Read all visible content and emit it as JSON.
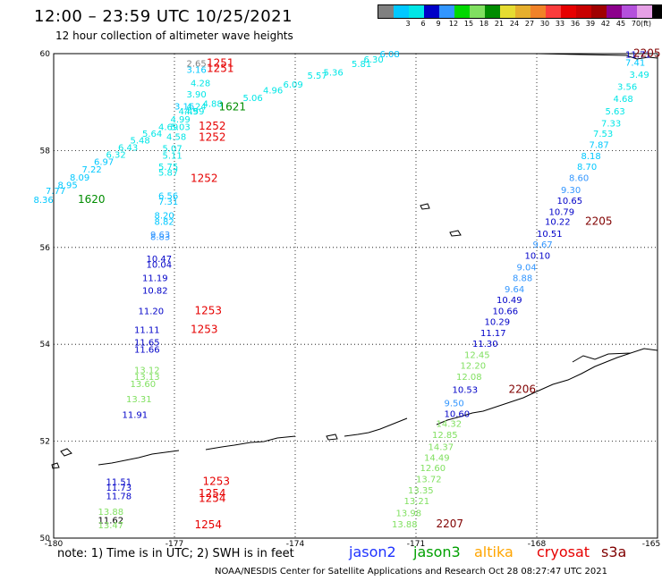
{
  "title": "12:00 – 23:59 UTC 10/25/2021",
  "subtitle": "12 hour collection of altimeter wave heights",
  "colorbar": {
    "colors": [
      "#808080",
      "#00c8ff",
      "#00e6e6",
      "#0000c8",
      "#3296ff",
      "#00d800",
      "#80e060",
      "#008c00",
      "#e6dc32",
      "#e6af2d",
      "#f08228",
      "#fa3c3c",
      "#e60000",
      "#c80000",
      "#a00000",
      "#8c008c",
      "#b450dc",
      "#e6a0e6",
      "#000000"
    ],
    "ticks": [
      "3",
      "6",
      "9",
      "12",
      "15",
      "18",
      "21",
      "24",
      "27",
      "30",
      "33",
      "36",
      "39",
      "42",
      "45",
      "70"
    ],
    "unit": "(ft)"
  },
  "axes": {
    "lon_labels": [
      "-180",
      "-177",
      "-174",
      "-171",
      "-168",
      "-165"
    ],
    "lat_labels": [
      "60",
      "58",
      "56",
      "54",
      "52",
      "50"
    ]
  },
  "note": "note:  1) Time is in UTC; 2) SWH is in feet",
  "satellites": [
    {
      "name": "jason2",
      "color": "#1e32ff"
    },
    {
      "name": "jason3",
      "color": "#00a000"
    },
    {
      "name": "altika",
      "color": "#ffa500"
    },
    {
      "name": "cryosat",
      "color": "#e60000"
    },
    {
      "name": "s3a",
      "color": "#800000"
    }
  ],
  "credit": "NOAA/NESDIS Center for Satellite Applications and Research    Oct 28 08:27:47 UTC 2021",
  "track_labels": [
    {
      "text": "1251",
      "lon": -176.2,
      "lat": 59.73,
      "color": "#e60000"
    },
    {
      "text": "1251",
      "lon": -176.2,
      "lat": 59.62,
      "color": "#e60000"
    },
    {
      "text": "1621",
      "lon": -175.9,
      "lat": 58.83,
      "color": "#008c00"
    },
    {
      "text": "1252",
      "lon": -176.4,
      "lat": 58.43,
      "color": "#e60000"
    },
    {
      "text": "1252",
      "lon": -176.4,
      "lat": 58.2,
      "color": "#e60000"
    },
    {
      "text": "1252",
      "lon": -176.6,
      "lat": 57.35,
      "color": "#e60000"
    },
    {
      "text": "1620",
      "lon": -179.4,
      "lat": 56.92,
      "color": "#008c00"
    },
    {
      "text": "2205",
      "lon": -166.8,
      "lat": 56.47,
      "color": "#800000"
    },
    {
      "text": "1253",
      "lon": -176.5,
      "lat": 54.62,
      "color": "#e60000"
    },
    {
      "text": "1253",
      "lon": -176.6,
      "lat": 54.23,
      "color": "#e60000"
    },
    {
      "text": "2206",
      "lon": -168.7,
      "lat": 53.0,
      "color": "#800000"
    },
    {
      "text": "1253",
      "lon": -176.3,
      "lat": 51.1,
      "color": "#e60000"
    },
    {
      "text": "1254",
      "lon": -176.4,
      "lat": 50.85,
      "color": "#e60000"
    },
    {
      "text": "1254",
      "lon": -176.4,
      "lat": 50.75,
      "color": "#e60000"
    },
    {
      "text": "1254",
      "lon": -176.5,
      "lat": 50.2,
      "color": "#e60000"
    },
    {
      "text": "2207",
      "lon": -170.5,
      "lat": 50.22,
      "color": "#800000"
    },
    {
      "text": "2205",
      "lon": -165.1,
      "lat": 59.94,
      "color": "#800000"
    }
  ],
  "wave_points": [
    {
      "text": "2.65",
      "lon": -176.7,
      "lat": 59.73,
      "color": "#808080"
    },
    {
      "text": "3.16",
      "lon": -176.7,
      "lat": 59.6,
      "color": "#00c8ff"
    },
    {
      "text": "4.28",
      "lon": -176.6,
      "lat": 59.33,
      "color": "#00e6e6"
    },
    {
      "text": "3.90",
      "lon": -176.7,
      "lat": 59.1,
      "color": "#00e6e6"
    },
    {
      "text": "3.16",
      "lon": -177.0,
      "lat": 58.85,
      "color": "#00c8ff"
    },
    {
      "text": "4.24",
      "lon": -176.7,
      "lat": 58.85,
      "color": "#00e6e6"
    },
    {
      "text": "4.88",
      "lon": -176.3,
      "lat": 58.9,
      "color": "#00e6e6"
    },
    {
      "text": "4.49",
      "lon": -176.9,
      "lat": 58.75,
      "color": "#00e6e6"
    },
    {
      "text": "4.59",
      "lon": -176.75,
      "lat": 58.75,
      "color": "#00e6e6"
    },
    {
      "text": "4.99",
      "lon": -177.1,
      "lat": 58.58,
      "color": "#00e6e6"
    },
    {
      "text": "4.69",
      "lon": -177.4,
      "lat": 58.42,
      "color": "#00e6e6"
    },
    {
      "text": "5.03",
      "lon": -177.1,
      "lat": 58.42,
      "color": "#00e6e6"
    },
    {
      "text": "5.64",
      "lon": -177.8,
      "lat": 58.28,
      "color": "#00e6e6"
    },
    {
      "text": "4.58",
      "lon": -177.2,
      "lat": 58.22,
      "color": "#00e6e6"
    },
    {
      "text": "5.48",
      "lon": -178.1,
      "lat": 58.15,
      "color": "#00e6e6"
    },
    {
      "text": "6.43",
      "lon": -178.4,
      "lat": 58.0,
      "color": "#00e6e6"
    },
    {
      "text": "6.32",
      "lon": -178.7,
      "lat": 57.85,
      "color": "#00e6e6"
    },
    {
      "text": "5.07",
      "lon": -177.3,
      "lat": 57.98,
      "color": "#00e6e6"
    },
    {
      "text": "5.11",
      "lon": -177.3,
      "lat": 57.83,
      "color": "#00e6e6"
    },
    {
      "text": "6.97",
      "lon": -179.0,
      "lat": 57.7,
      "color": "#00c8ff"
    },
    {
      "text": "7.22",
      "lon": -179.3,
      "lat": 57.55,
      "color": "#00c8ff"
    },
    {
      "text": "5.75",
      "lon": -177.4,
      "lat": 57.6,
      "color": "#00e6e6"
    },
    {
      "text": "5.87",
      "lon": -177.4,
      "lat": 57.48,
      "color": "#00e6e6"
    },
    {
      "text": "8.09",
      "lon": -179.6,
      "lat": 57.38,
      "color": "#00c8ff"
    },
    {
      "text": "8.95",
      "lon": -179.9,
      "lat": 57.22,
      "color": "#00c8ff"
    },
    {
      "text": "7.77",
      "lon": -180.2,
      "lat": 57.1,
      "color": "#00c8ff"
    },
    {
      "text": "8.36",
      "lon": -180.5,
      "lat": 56.92,
      "color": "#00c8ff"
    },
    {
      "text": "6.56",
      "lon": -177.4,
      "lat": 57.0,
      "color": "#00c8ff"
    },
    {
      "text": "7.31",
      "lon": -177.4,
      "lat": 56.88,
      "color": "#00c8ff"
    },
    {
      "text": "8.20",
      "lon": -177.5,
      "lat": 56.6,
      "color": "#00c8ff"
    },
    {
      "text": "8.82",
      "lon": -177.5,
      "lat": 56.47,
      "color": "#00c8ff"
    },
    {
      "text": "9.63",
      "lon": -177.6,
      "lat": 56.2,
      "color": "#3296ff"
    },
    {
      "text": "8.83",
      "lon": -177.6,
      "lat": 56.15,
      "color": "#3296ff"
    },
    {
      "text": "10.47",
      "lon": -177.7,
      "lat": 55.7,
      "color": "#0000c8"
    },
    {
      "text": "10.04",
      "lon": -177.7,
      "lat": 55.58,
      "color": "#0000c8"
    },
    {
      "text": "11.19",
      "lon": -177.8,
      "lat": 55.3,
      "color": "#0000c8"
    },
    {
      "text": "10.82",
      "lon": -177.8,
      "lat": 55.05,
      "color": "#0000c8"
    },
    {
      "text": "11.20",
      "lon": -177.9,
      "lat": 54.62,
      "color": "#0000c8"
    },
    {
      "text": "11.11",
      "lon": -178.0,
      "lat": 54.23,
      "color": "#0000c8"
    },
    {
      "text": "11.65",
      "lon": -178.0,
      "lat": 53.98,
      "color": "#0000c8"
    },
    {
      "text": "11.66",
      "lon": -178.0,
      "lat": 53.83,
      "color": "#0000c8"
    },
    {
      "text": "13.12",
      "lon": -178.0,
      "lat": 53.4,
      "color": "#80e060"
    },
    {
      "text": "13.13",
      "lon": -178.0,
      "lat": 53.27,
      "color": "#80e060"
    },
    {
      "text": "13.60",
      "lon": -178.1,
      "lat": 53.12,
      "color": "#80e060"
    },
    {
      "text": "13.31",
      "lon": -178.2,
      "lat": 52.8,
      "color": "#80e060"
    },
    {
      "text": "11.91",
      "lon": -178.3,
      "lat": 52.48,
      "color": "#0000c8"
    },
    {
      "text": "11.51",
      "lon": -178.7,
      "lat": 51.1,
      "color": "#0000c8"
    },
    {
      "text": "11.73",
      "lon": -178.7,
      "lat": 50.98,
      "color": "#0000c8"
    },
    {
      "text": "11.78",
      "lon": -178.7,
      "lat": 50.8,
      "color": "#0000c8"
    },
    {
      "text": "13.88",
      "lon": -178.9,
      "lat": 50.48,
      "color": "#80e060"
    },
    {
      "text": "11.62",
      "lon": -178.9,
      "lat": 50.3,
      "color": "#000000"
    },
    {
      "text": "13.47",
      "lon": -178.9,
      "lat": 50.2,
      "color": "#80e060"
    },
    {
      "text": "6.08",
      "lon": -171.9,
      "lat": 59.93,
      "color": "#00c8ff"
    },
    {
      "text": "6.30",
      "lon": -172.3,
      "lat": 59.82,
      "color": "#00e6e6"
    },
    {
      "text": "5.81",
      "lon": -172.6,
      "lat": 59.72,
      "color": "#00e6e6"
    },
    {
      "text": "5.36",
      "lon": -173.3,
      "lat": 59.55,
      "color": "#00e6e6"
    },
    {
      "text": "5.57",
      "lon": -173.7,
      "lat": 59.48,
      "color": "#00e6e6"
    },
    {
      "text": "6.09",
      "lon": -174.3,
      "lat": 59.3,
      "color": "#00e6e6"
    },
    {
      "text": "4.96",
      "lon": -174.8,
      "lat": 59.18,
      "color": "#00e6e6"
    },
    {
      "text": "5.06",
      "lon": -175.3,
      "lat": 59.02,
      "color": "#00e6e6"
    },
    {
      "text": "11.71",
      "lon": -165.8,
      "lat": 59.92,
      "color": "#0000c8"
    },
    {
      "text": "7.41",
      "lon": -165.8,
      "lat": 59.75,
      "color": "#00c8ff"
    },
    {
      "text": "3.49",
      "lon": -165.7,
      "lat": 59.5,
      "color": "#00e6e6"
    },
    {
      "text": "3.56",
      "lon": -166.0,
      "lat": 59.25,
      "color": "#00e6e6"
    },
    {
      "text": "4.68",
      "lon": -166.1,
      "lat": 59.0,
      "color": "#00e6e6"
    },
    {
      "text": "5.63",
      "lon": -166.3,
      "lat": 58.75,
      "color": "#00e6e6"
    },
    {
      "text": "7.33",
      "lon": -166.4,
      "lat": 58.5,
      "color": "#00e6e6"
    },
    {
      "text": "7.53",
      "lon": -166.6,
      "lat": 58.28,
      "color": "#00e6e6"
    },
    {
      "text": "7.87",
      "lon": -166.7,
      "lat": 58.05,
      "color": "#00c8ff"
    },
    {
      "text": "8.18",
      "lon": -166.9,
      "lat": 57.82,
      "color": "#00c8ff"
    },
    {
      "text": "8.70",
      "lon": -167.0,
      "lat": 57.6,
      "color": "#00c8ff"
    },
    {
      "text": "8.60",
      "lon": -167.2,
      "lat": 57.37,
      "color": "#3296ff"
    },
    {
      "text": "9.30",
      "lon": -167.4,
      "lat": 57.12,
      "color": "#3296ff"
    },
    {
      "text": "10.65",
      "lon": -167.5,
      "lat": 56.9,
      "color": "#0000c8"
    },
    {
      "text": "10.79",
      "lon": -167.7,
      "lat": 56.67,
      "color": "#0000c8"
    },
    {
      "text": "10.22",
      "lon": -167.8,
      "lat": 56.47,
      "color": "#0000c8"
    },
    {
      "text": "10.51",
      "lon": -168.0,
      "lat": 56.22,
      "color": "#0000c8"
    },
    {
      "text": "9.67",
      "lon": -168.1,
      "lat": 56.0,
      "color": "#3296ff"
    },
    {
      "text": "10.10",
      "lon": -168.3,
      "lat": 55.77,
      "color": "#0000c8"
    },
    {
      "text": "9.04",
      "lon": -168.5,
      "lat": 55.53,
      "color": "#3296ff"
    },
    {
      "text": "8.88",
      "lon": -168.6,
      "lat": 55.3,
      "color": "#3296ff"
    },
    {
      "text": "9.64",
      "lon": -168.8,
      "lat": 55.07,
      "color": "#3296ff"
    },
    {
      "text": "10.49",
      "lon": -169.0,
      "lat": 54.85,
      "color": "#0000c8"
    },
    {
      "text": "10.66",
      "lon": -169.1,
      "lat": 54.62,
      "color": "#0000c8"
    },
    {
      "text": "10.29",
      "lon": -169.3,
      "lat": 54.4,
      "color": "#0000c8"
    },
    {
      "text": "11.17",
      "lon": -169.4,
      "lat": 54.17,
      "color": "#0000c8"
    },
    {
      "text": "11.30",
      "lon": -169.6,
      "lat": 53.95,
      "color": "#0000c8"
    },
    {
      "text": "12.45",
      "lon": -169.8,
      "lat": 53.72,
      "color": "#80e060"
    },
    {
      "text": "12.20",
      "lon": -169.9,
      "lat": 53.5,
      "color": "#80e060"
    },
    {
      "text": "12.08",
      "lon": -170.0,
      "lat": 53.27,
      "color": "#80e060"
    },
    {
      "text": "10.53",
      "lon": -170.1,
      "lat": 53.0,
      "color": "#0000c8"
    },
    {
      "text": "9.50",
      "lon": -170.3,
      "lat": 52.72,
      "color": "#3296ff"
    },
    {
      "text": "10.60",
      "lon": -170.3,
      "lat": 52.5,
      "color": "#0000c8"
    },
    {
      "text": "14.32",
      "lon": -170.5,
      "lat": 52.3,
      "color": "#80e060"
    },
    {
      "text": "12.85",
      "lon": -170.6,
      "lat": 52.07,
      "color": "#80e060"
    },
    {
      "text": "14.37",
      "lon": -170.7,
      "lat": 51.82,
      "color": "#80e060"
    },
    {
      "text": "14.49",
      "lon": -170.8,
      "lat": 51.6,
      "color": "#80e060"
    },
    {
      "text": "12.60",
      "lon": -170.9,
      "lat": 51.38,
      "color": "#80e060"
    },
    {
      "text": "13.72",
      "lon": -171.0,
      "lat": 51.15,
      "color": "#80e060"
    },
    {
      "text": "13.35",
      "lon": -171.2,
      "lat": 50.92,
      "color": "#80e060"
    },
    {
      "text": "13.21",
      "lon": -171.3,
      "lat": 50.7,
      "color": "#80e060"
    },
    {
      "text": "13.98",
      "lon": -171.5,
      "lat": 50.45,
      "color": "#80e060"
    },
    {
      "text": "13.88",
      "lon": -171.6,
      "lat": 50.22,
      "color": "#80e060"
    }
  ]
}
